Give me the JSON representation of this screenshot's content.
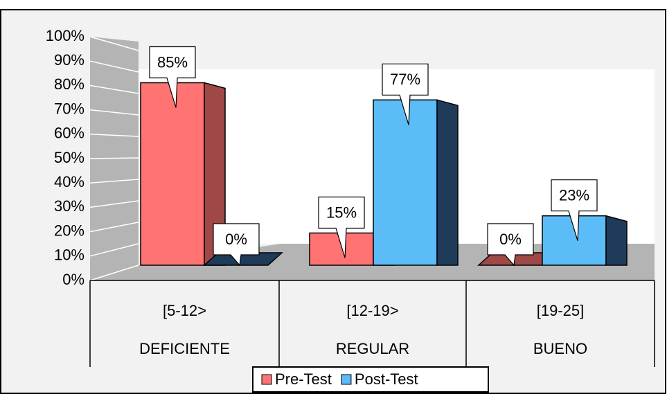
{
  "chart_data": {
    "type": "bar",
    "categories": [
      "[5-12>",
      "[12-19>",
      "[19-25]"
    ],
    "category_groups": [
      "DEFICIENTE",
      "REGULAR",
      "BUENO"
    ],
    "series": [
      {
        "name": "Pre-Test",
        "color": "#ff7373",
        "values": [
          85,
          15,
          0
        ],
        "value_labels": [
          "85%",
          "15%",
          "0%"
        ]
      },
      {
        "name": "Post-Test",
        "color": "#5cbcf8",
        "values": [
          0,
          77,
          23
        ],
        "value_labels": [
          "0%",
          "77%",
          "23%"
        ]
      }
    ],
    "ylim": [
      0,
      100
    ],
    "yticks": [
      {
        "value": 0,
        "label": "0%"
      },
      {
        "value": 10,
        "label": "10%"
      },
      {
        "value": 20,
        "label": "20%"
      },
      {
        "value": 30,
        "label": "30%"
      },
      {
        "value": 40,
        "label": "40%"
      },
      {
        "value": 50,
        "label": "50%"
      },
      {
        "value": 60,
        "label": "60%"
      },
      {
        "value": 70,
        "label": "70%"
      },
      {
        "value": 80,
        "label": "80%"
      },
      {
        "value": 90,
        "label": "90%"
      },
      {
        "value": 100,
        "label": "100%"
      }
    ],
    "grid": true
  }
}
